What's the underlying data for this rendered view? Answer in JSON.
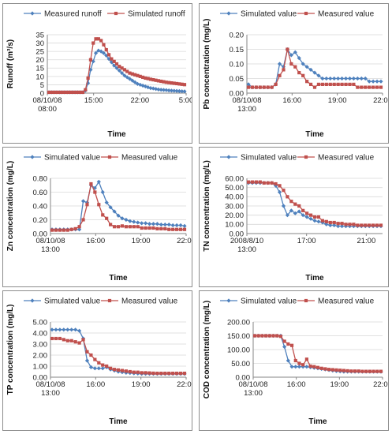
{
  "colors": {
    "blue": "#4f81bd",
    "red": "#c0504d",
    "grid": "#d9d9d9",
    "axis": "#868686"
  },
  "chart_data": [
    {
      "id": "runoff",
      "type": "line",
      "ylabel": "Runoff (m³/s)",
      "xlabel": "Time",
      "ylim": [
        0,
        35
      ],
      "yticks": [
        "0",
        "5",
        "10",
        "15",
        "20",
        "25",
        "30",
        "35"
      ],
      "xticklabels": [
        {
          "t": 0,
          "lines": [
            "08/10/08",
            "08:00"
          ]
        },
        {
          "t": 0.3333,
          "lines": [
            "15:00"
          ]
        },
        {
          "t": 0.6667,
          "lines": [
            "22:00"
          ]
        },
        {
          "t": 1,
          "lines": [
            "5:00"
          ]
        }
      ],
      "series": [
        {
          "name": "Measured runoff",
          "color": "blue",
          "marker": "diamond",
          "values": [
            0.5,
            0.5,
            0.5,
            0.5,
            0.5,
            0.5,
            0.5,
            0.5,
            0.5,
            0.5,
            0.5,
            0.5,
            0.5,
            0.5,
            1.5,
            6,
            14,
            19,
            24,
            25.5,
            25,
            24,
            22.5,
            20.5,
            18.5,
            16.5,
            15,
            13.5,
            12,
            10.5,
            9.5,
            8.5,
            7.5,
            6.5,
            5.5,
            5,
            4.5,
            4,
            3.5,
            3,
            2.8,
            2.5,
            2.2,
            2,
            1.9,
            1.8,
            1.6,
            1.5,
            1.4,
            1.3,
            1.2,
            1.1,
            1
          ]
        },
        {
          "name": "Simulated runoff",
          "color": "red",
          "marker": "square",
          "values": [
            0.5,
            0.5,
            0.5,
            0.5,
            0.5,
            0.5,
            0.5,
            0.5,
            0.5,
            0.5,
            0.5,
            0.5,
            0.5,
            0.5,
            2,
            9,
            20,
            30,
            32.5,
            32.5,
            31.5,
            29,
            26,
            23,
            20.5,
            19,
            17.5,
            16,
            15,
            14,
            13,
            12,
            11.5,
            11,
            10.5,
            10,
            9.5,
            9,
            8.7,
            8.3,
            8,
            7.7,
            7.4,
            7.1,
            6.8,
            6.5,
            6.3,
            6.1,
            5.9,
            5.7,
            5.5,
            5.3,
            5.1
          ]
        }
      ]
    },
    {
      "id": "pb",
      "type": "line",
      "ylabel": "Pb  concentration (mg/L)",
      "xlabel": "Time",
      "ylim": [
        0,
        0.2
      ],
      "yticks": [
        "0.00",
        "0.05",
        "0.10",
        "0.15",
        "0.20"
      ],
      "xticklabels": [
        {
          "t": 0,
          "lines": [
            "08/10/08",
            "13:00"
          ]
        },
        {
          "t": 0.3333,
          "lines": [
            "16:00"
          ]
        },
        {
          "t": 0.6667,
          "lines": [
            "19:00"
          ]
        },
        {
          "t": 1,
          "lines": [
            "22:00"
          ]
        }
      ],
      "series": [
        {
          "name": "Simulated value",
          "color": "blue",
          "marker": "diamond",
          "values": [
            0.03,
            0.02,
            0.02,
            0.02,
            0.02,
            0.02,
            0.02,
            0.03,
            0.1,
            0.09,
            0.15,
            0.13,
            0.14,
            0.12,
            0.1,
            0.09,
            0.08,
            0.07,
            0.06,
            0.05,
            0.05,
            0.05,
            0.05,
            0.05,
            0.05,
            0.05,
            0.05,
            0.05,
            0.05,
            0.05,
            0.05,
            0.04,
            0.04,
            0.04,
            0.04
          ]
        },
        {
          "name": "Measured value",
          "color": "red",
          "marker": "square",
          "values": [
            0.02,
            0.02,
            0.02,
            0.02,
            0.02,
            0.02,
            0.02,
            0.03,
            0.06,
            0.08,
            0.15,
            0.1,
            0.09,
            0.07,
            0.06,
            0.04,
            0.03,
            0.02,
            0.03,
            0.03,
            0.03,
            0.03,
            0.03,
            0.03,
            0.03,
            0.03,
            0.03,
            0.03,
            0.02,
            0.02,
            0.02,
            0.02,
            0.02,
            0.02,
            0.02
          ]
        }
      ]
    },
    {
      "id": "zn",
      "type": "line",
      "ylabel": "Zn  concentration (mg/L)",
      "xlabel": "Time",
      "ylim": [
        0,
        0.8
      ],
      "yticks": [
        "0.00",
        "0.20",
        "0.40",
        "0.60",
        "0.80"
      ],
      "xticklabels": [
        {
          "t": 0,
          "lines": [
            "08/10/08",
            "13:00"
          ]
        },
        {
          "t": 0.3333,
          "lines": [
            "16:00"
          ]
        },
        {
          "t": 0.6667,
          "lines": [
            "19:00"
          ]
        },
        {
          "t": 1,
          "lines": [
            "22:00"
          ]
        }
      ],
      "series": [
        {
          "name": "Simulated value",
          "color": "blue",
          "marker": "diamond",
          "values": [
            0.06,
            0.06,
            0.06,
            0.06,
            0.06,
            0.06,
            0.06,
            0.06,
            0.47,
            0.45,
            0.7,
            0.66,
            0.75,
            0.6,
            0.45,
            0.38,
            0.32,
            0.26,
            0.22,
            0.2,
            0.18,
            0.17,
            0.16,
            0.15,
            0.15,
            0.14,
            0.14,
            0.14,
            0.13,
            0.13,
            0.13,
            0.12,
            0.12,
            0.12,
            0.11
          ]
        },
        {
          "name": "Measured value",
          "color": "red",
          "marker": "square",
          "values": [
            0.05,
            0.05,
            0.05,
            0.05,
            0.05,
            0.06,
            0.07,
            0.1,
            0.2,
            0.42,
            0.72,
            0.6,
            0.42,
            0.27,
            0.22,
            0.13,
            0.1,
            0.1,
            0.11,
            0.1,
            0.1,
            0.1,
            0.1,
            0.08,
            0.08,
            0.08,
            0.08,
            0.07,
            0.07,
            0.07,
            0.06,
            0.06,
            0.06,
            0.06,
            0.06
          ]
        }
      ]
    },
    {
      "id": "tn",
      "type": "line",
      "ylabel": "TN  concentration (mg/L)",
      "xlabel": "Time",
      "ylim": [
        0,
        60
      ],
      "yticks": [
        "0.00",
        "10.00",
        "20.00",
        "30.00",
        "40.00",
        "50.00",
        "60.00"
      ],
      "xticklabels": [
        {
          "t": 0,
          "lines": [
            "2008/8/10",
            "13:00"
          ]
        },
        {
          "t": 0.44,
          "lines": [
            "17:00"
          ]
        },
        {
          "t": 0.88,
          "lines": [
            "21:00"
          ]
        }
      ],
      "series": [
        {
          "name": "Simulated value",
          "color": "blue",
          "marker": "diamond",
          "values": [
            55,
            55,
            55,
            55,
            55,
            55,
            55,
            52,
            45,
            30,
            20,
            25,
            22,
            24,
            20,
            18,
            16,
            14,
            13,
            12,
            10,
            9,
            9,
            8,
            8,
            8,
            8,
            8,
            8,
            8,
            8,
            8,
            8,
            8,
            8
          ]
        },
        {
          "name": "Measured value",
          "color": "red",
          "marker": "square",
          "values": [
            56,
            56,
            56,
            56,
            55,
            55,
            55,
            54,
            52,
            47,
            40,
            35,
            32,
            30,
            25,
            22,
            20,
            18,
            18,
            14,
            13,
            12,
            12,
            11,
            11,
            10,
            10,
            10,
            9,
            9,
            9,
            9,
            9,
            9,
            9
          ]
        }
      ]
    },
    {
      "id": "tp",
      "type": "line",
      "ylabel": "TP  concentration (mg/L)",
      "xlabel": "Time",
      "ylim": [
        0,
        5
      ],
      "yticks": [
        "0.00",
        "1.00",
        "2.00",
        "3.00",
        "4.00",
        "5.00"
      ],
      "xticklabels": [
        {
          "t": 0,
          "lines": [
            "08/10/08",
            "13:00"
          ]
        },
        {
          "t": 0.3333,
          "lines": [
            "16:00"
          ]
        },
        {
          "t": 0.6667,
          "lines": [
            "19:00"
          ]
        },
        {
          "t": 1,
          "lines": [
            "22:00"
          ]
        }
      ],
      "series": [
        {
          "name": "Simulated value",
          "color": "blue",
          "marker": "diamond",
          "values": [
            4.3,
            4.3,
            4.3,
            4.3,
            4.3,
            4.3,
            4.3,
            4.2,
            3.5,
            1.5,
            0.9,
            0.8,
            0.8,
            0.8,
            0.9,
            0.7,
            0.6,
            0.5,
            0.45,
            0.4,
            0.38,
            0.35,
            0.33,
            0.3,
            0.3,
            0.3,
            0.3,
            0.3,
            0.3,
            0.3,
            0.3,
            0.3,
            0.3,
            0.3,
            0.3
          ]
        },
        {
          "name": "Measured value",
          "color": "red",
          "marker": "square",
          "values": [
            3.5,
            3.5,
            3.5,
            3.4,
            3.3,
            3.3,
            3.2,
            3.1,
            3.4,
            2.3,
            2,
            1.6,
            1.3,
            1.1,
            1,
            0.8,
            0.7,
            0.65,
            0.6,
            0.55,
            0.5,
            0.45,
            0.45,
            0.4,
            0.4,
            0.38,
            0.36,
            0.35,
            0.35,
            0.35,
            0.35,
            0.35,
            0.35,
            0.35,
            0.35
          ]
        }
      ]
    },
    {
      "id": "cod",
      "type": "line",
      "ylabel": "COD  concentration (mg/L)",
      "xlabel": "Time",
      "ylim": [
        0,
        200
      ],
      "yticks": [
        "0.00",
        "50.00",
        "100.00",
        "150.00",
        "200.00"
      ],
      "xticklabels": [
        {
          "t": 0,
          "lines": [
            "08/10/08",
            "13:00"
          ]
        },
        {
          "t": 0.3333,
          "lines": [
            "16:00"
          ]
        },
        {
          "t": 0.6667,
          "lines": [
            "19:00"
          ]
        },
        {
          "t": 1,
          "lines": [
            "22:00"
          ]
        }
      ],
      "series": [
        {
          "name": "Simulated value",
          "color": "blue",
          "marker": "diamond",
          "values": [
            150,
            150,
            150,
            150,
            150,
            150,
            150,
            150,
            110,
            60,
            38,
            38,
            38,
            38,
            38,
            36,
            34,
            32,
            30,
            28,
            26,
            24,
            22,
            21,
            20,
            20,
            20,
            20,
            20,
            20,
            20,
            20,
            20,
            20,
            20
          ]
        },
        {
          "name": "Measured value",
          "color": "red",
          "marker": "square",
          "values": [
            150,
            150,
            150,
            150,
            150,
            150,
            150,
            148,
            130,
            120,
            115,
            60,
            50,
            45,
            65,
            40,
            38,
            35,
            32,
            30,
            28,
            27,
            26,
            25,
            24,
            23,
            22,
            22,
            22,
            21,
            21,
            21,
            21,
            21,
            21
          ]
        }
      ]
    }
  ]
}
